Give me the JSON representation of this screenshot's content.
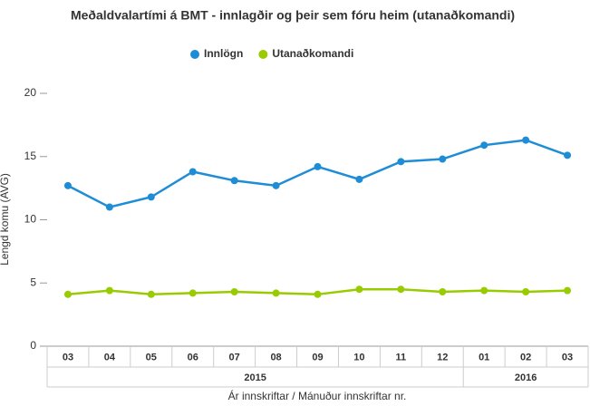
{
  "chart_data": {
    "type": "line",
    "title": "Meðaldvalartími á BMT - innlagðir og þeir sem fóru heim (utanaðkomandi)",
    "categories": [
      "03",
      "04",
      "05",
      "06",
      "07",
      "08",
      "09",
      "10",
      "11",
      "12",
      "01",
      "02",
      "03"
    ],
    "x_groups": [
      {
        "label": "2015",
        "size": 10
      },
      {
        "label": "2016",
        "size": 3
      }
    ],
    "series": [
      {
        "name": "Innlögn",
        "color": "#1f8dd6",
        "values": [
          12.7,
          11.0,
          11.8,
          13.8,
          13.1,
          12.7,
          14.2,
          13.2,
          14.6,
          14.8,
          15.9,
          16.3,
          15.1
        ]
      },
      {
        "name": "Utanaðkomandi",
        "color": "#99cc00",
        "values": [
          4.1,
          4.4,
          4.1,
          4.2,
          4.3,
          4.2,
          4.1,
          4.5,
          4.5,
          4.3,
          4.4,
          4.3,
          4.4
        ]
      }
    ],
    "ylim": [
      0,
      20
    ],
    "yticks": [
      0,
      5,
      10,
      15,
      20
    ],
    "xlabel": "Ár innskriftar / Mánuður innskriftar nr.",
    "ylabel": "Lengd komu (AVG)",
    "legend": "top"
  }
}
